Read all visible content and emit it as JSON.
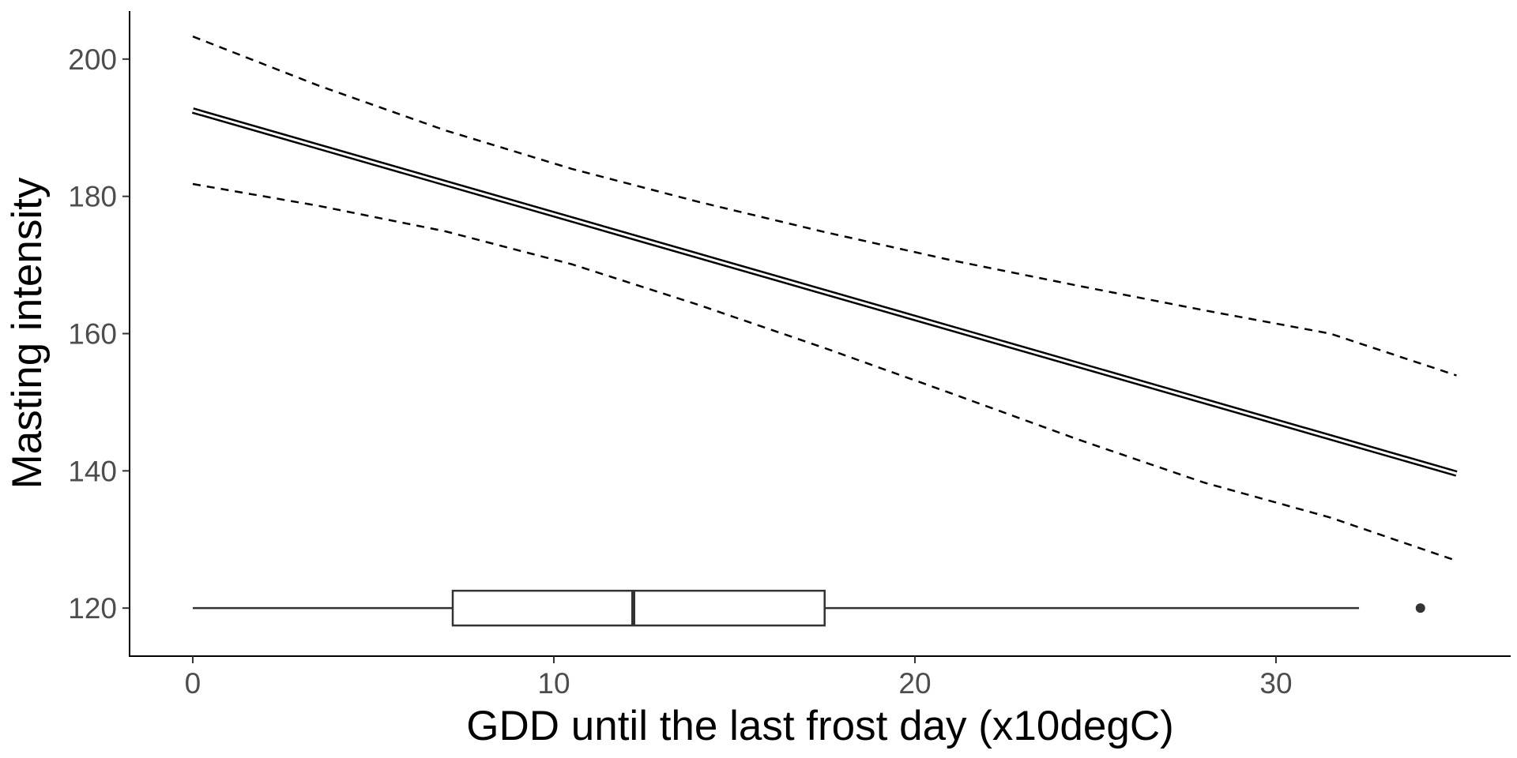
{
  "chart_data": {
    "type": "line",
    "title": "",
    "xlabel": "GDD until the last frost day (x10degC)",
    "ylabel": "Masting intensity",
    "xlim": [
      -1.75,
      36.5
    ],
    "ylim": [
      113,
      207
    ],
    "x_ticks": [
      0,
      10,
      20,
      30
    ],
    "y_ticks": [
      120,
      140,
      160,
      180,
      200
    ],
    "grid": false,
    "legend": "none",
    "series": [
      {
        "style": "double-solid",
        "x": [
          0,
          35
        ],
        "y": [
          192.5,
          139.6
        ]
      },
      {
        "style": "dashed",
        "x": [
          0,
          3.5,
          7,
          10.5,
          14,
          17.5,
          21,
          24.5,
          28,
          31.5,
          35
        ],
        "y": [
          203.3,
          196.1,
          189.6,
          184.0,
          179.2,
          174.8,
          170.7,
          167.0,
          163.4,
          160.0,
          153.9
        ]
      },
      {
        "style": "dashed",
        "x": [
          0,
          3.5,
          7,
          10.5,
          14,
          17.5,
          21,
          24.5,
          28,
          31.5,
          35
        ],
        "y": [
          181.8,
          178.6,
          174.9,
          170.1,
          164.2,
          157.9,
          151.3,
          144.6,
          138.3,
          133.2,
          126.9
        ]
      }
    ],
    "boxplot": {
      "y": 120,
      "whisker_low": 0,
      "q1": 7.2,
      "median": 12.2,
      "q3": 17.5,
      "whisker_high": 32.3,
      "outliers": [
        34
      ]
    }
  }
}
